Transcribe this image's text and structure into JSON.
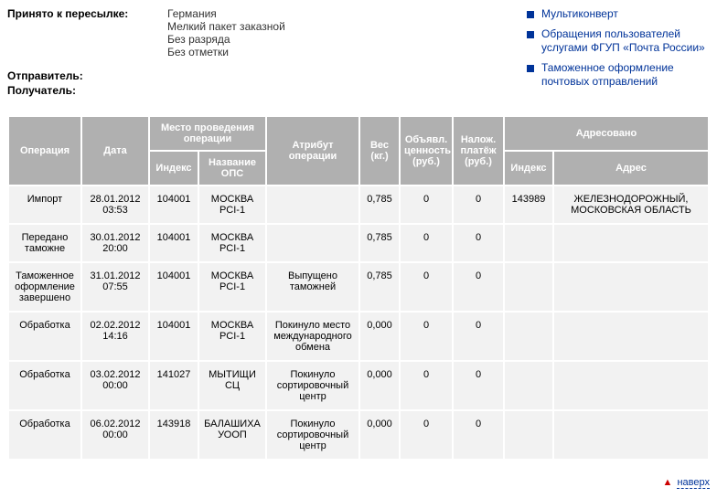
{
  "info": {
    "accepted_label": "Принято к пересылке:",
    "accepted_values": [
      "Германия",
      "Мелкий пакет заказной",
      "Без разряда",
      "Без отметки"
    ],
    "sender_label": "Отправитель:",
    "recipient_label": "Получатель:"
  },
  "sidelinks": [
    "Мультиконверт",
    "Обращения пользователей услугами ФГУП «Почта России»",
    "Таможенное оформление почтовых отправлений"
  ],
  "table": {
    "headers": {
      "operation": "Операция",
      "date": "Дата",
      "location_group": "Место проведения операции",
      "index": "Индекс",
      "ops_name": "Название ОПС",
      "attribute": "Атрибут операции",
      "weight": "Вес (кг.)",
      "declared": "Объявл. ценность (руб.)",
      "cod": "Налож. платёж (руб.)",
      "addressed_group": "Адресовано",
      "addr_index": "Индекс",
      "addr": "Адрес"
    },
    "rows": [
      {
        "op": "Импорт",
        "date": "28.01.2012 03:53",
        "idx": "104001",
        "ops": "МОСКВА PCI-1",
        "attr": "",
        "weight": "0,785",
        "declared": "0",
        "cod": "0",
        "aidx": "143989",
        "addr": "ЖЕЛЕЗНОДОРОЖНЫЙ, МОСКОВСКАЯ ОБЛАСТЬ"
      },
      {
        "op": "Передано таможне",
        "date": "30.01.2012 20:00",
        "idx": "104001",
        "ops": "МОСКВА PCI-1",
        "attr": "",
        "weight": "0,785",
        "declared": "0",
        "cod": "0",
        "aidx": "",
        "addr": ""
      },
      {
        "op": "Таможенное оформление завершено",
        "date": "31.01.2012 07:55",
        "idx": "104001",
        "ops": "МОСКВА PCI-1",
        "attr": "Выпущено таможней",
        "weight": "0,785",
        "declared": "0",
        "cod": "0",
        "aidx": "",
        "addr": ""
      },
      {
        "op": "Обработка",
        "date": "02.02.2012 14:16",
        "idx": "104001",
        "ops": "МОСКВА PCI-1",
        "attr": "Покинуло место международного обмена",
        "weight": "0,000",
        "declared": "0",
        "cod": "0",
        "aidx": "",
        "addr": ""
      },
      {
        "op": "Обработка",
        "date": "03.02.2012 00:00",
        "idx": "141027",
        "ops": "МЫТИЩИ СЦ",
        "attr": "Покинуло сортировочный центр",
        "weight": "0,000",
        "declared": "0",
        "cod": "0",
        "aidx": "",
        "addr": ""
      },
      {
        "op": "Обработка",
        "date": "06.02.2012 00:00",
        "idx": "143918",
        "ops": "БАЛАШИХА УООП",
        "attr": "Покинуло сортировочный центр",
        "weight": "0,000",
        "declared": "0",
        "cod": "0",
        "aidx": "",
        "addr": ""
      }
    ]
  },
  "footer": {
    "up_label": "наверх"
  }
}
